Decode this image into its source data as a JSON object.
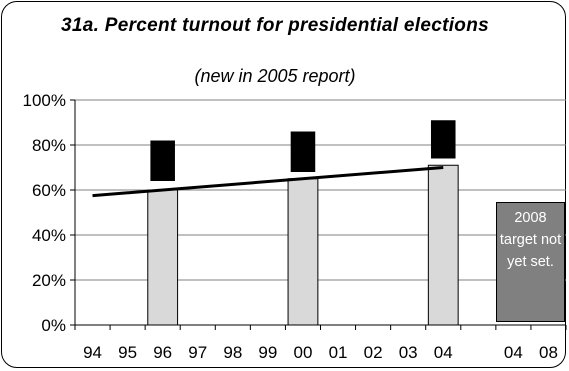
{
  "chart_data": {
    "type": "bar",
    "title": "31a. Percent turnout for presidential elections",
    "subtitle": "(new in 2005 report)",
    "categories": [
      "94",
      "95",
      "96",
      "97",
      "98",
      "99",
      "00",
      "01",
      "02",
      "03",
      "04",
      "",
      "04",
      "08"
    ],
    "series": [
      {
        "values": [
          null,
          null,
          60,
          null,
          null,
          null,
          65,
          null,
          null,
          null,
          71,
          null,
          null,
          null
        ]
      }
    ],
    "error_boxes": [
      {
        "x": "96",
        "low": 64,
        "high": 82
      },
      {
        "x": "00",
        "low": 68,
        "high": 86
      },
      {
        "x": "04",
        "low": 74,
        "high": 91
      }
    ],
    "trend_line": {
      "start": {
        "x": "94",
        "y": 57.5
      },
      "end": {
        "x": "04",
        "y": 70
      }
    },
    "ylim": [
      0,
      100
    ],
    "yticks": [
      "0%",
      "20%",
      "40%",
      "60%",
      "80%",
      "100%"
    ],
    "ytick_values": [
      0,
      20,
      40,
      60,
      80,
      100
    ],
    "grid": true,
    "annotation": "2008 target not yet set.",
    "colors": {
      "bar": "#d9d9d9",
      "error_box": "#000000",
      "trend": "#000000",
      "note_box": "#808080",
      "grid": "#808080"
    }
  }
}
